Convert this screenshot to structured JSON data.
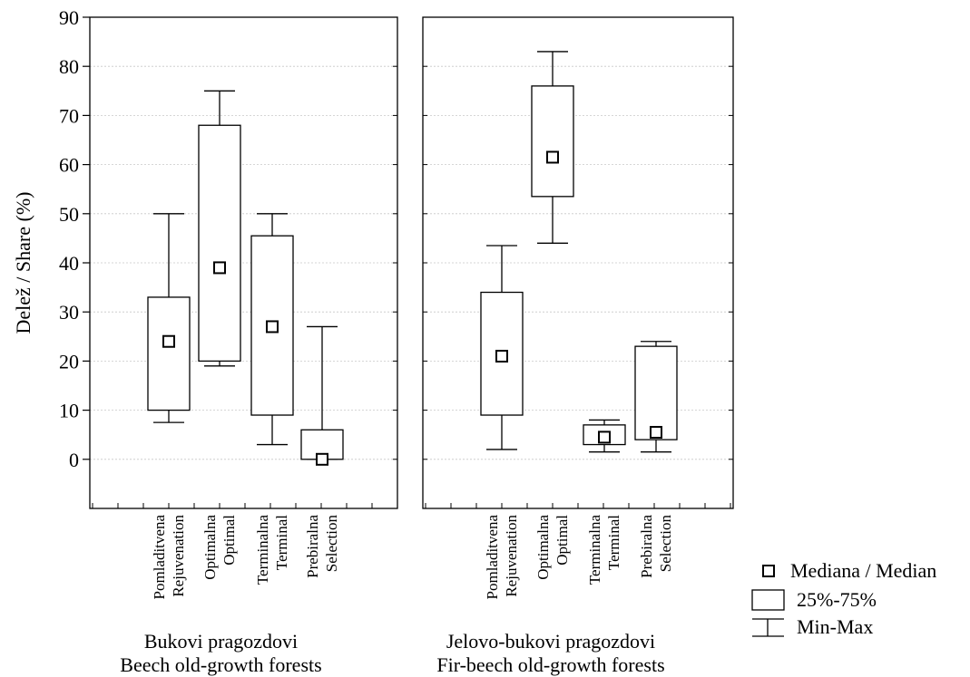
{
  "chart_data": {
    "type": "boxplot",
    "ylabel": "Delež / Share (%)",
    "ylim": [
      -10,
      90
    ],
    "yticks": [
      0,
      10,
      20,
      30,
      40,
      50,
      60,
      70,
      80,
      90
    ],
    "grid": "horizontal dotted",
    "categories": [
      {
        "line1": "Pomladitvena",
        "line2": "Rejuvenation"
      },
      {
        "line1": "Optimalna",
        "line2": "Optimal"
      },
      {
        "line1": "Terminalna",
        "line2": "Terminal"
      },
      {
        "line1": "Prebiralna",
        "line2": "Selection"
      }
    ],
    "panels": [
      {
        "title1": "Bukovi pragozdovi",
        "title2": "Beech old-growth forests",
        "boxes": [
          {
            "min": 7.5,
            "q1": 10,
            "median": 24,
            "q3": 33,
            "max": 50
          },
          {
            "min": 19,
            "q1": 20,
            "median": 39,
            "q3": 68,
            "max": 75
          },
          {
            "min": 3,
            "q1": 9,
            "median": 27,
            "q3": 45.5,
            "max": 50
          },
          {
            "min": 0,
            "q1": 0,
            "median": 0,
            "q3": 6,
            "max": 27
          }
        ]
      },
      {
        "title1": "Jelovo-bukovi pragozdovi",
        "title2": "Fir-beech old-growth forests",
        "boxes": [
          {
            "min": 2,
            "q1": 9,
            "median": 21,
            "q3": 34,
            "max": 43.5
          },
          {
            "min": 44,
            "q1": 53.5,
            "median": 61.5,
            "q3": 76,
            "max": 83
          },
          {
            "min": 1.5,
            "q1": 3,
            "median": 4.5,
            "q3": 7,
            "max": 8
          },
          {
            "min": 1.5,
            "q1": 4,
            "median": 5.5,
            "q3": 23,
            "max": 24
          }
        ]
      }
    ],
    "legend": {
      "position": "bottom-right",
      "median": "Mediana / Median",
      "box": "25%-75%",
      "whisker": "Min-Max"
    }
  }
}
